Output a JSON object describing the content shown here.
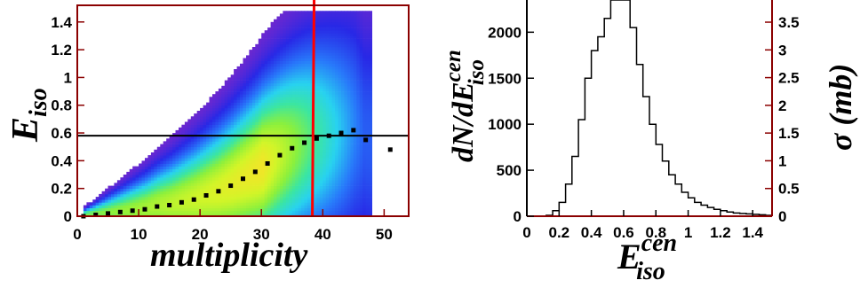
{
  "chart_data": [
    {
      "type": "heatmap",
      "xlabel": "multiplicity",
      "ylabel_main": "E",
      "ylabel_sub": "iso",
      "xlim": [
        0,
        54
      ],
      "ylim": [
        0,
        1.52
      ],
      "xticks": [
        0,
        10,
        20,
        30,
        40,
        50
      ],
      "xtick_labels": [
        "0",
        "10",
        "20",
        "30",
        "40",
        "50"
      ],
      "yticks": [
        0,
        0.2,
        0.4,
        0.6,
        0.8,
        1,
        1.2,
        1.4
      ],
      "ytick_labels": [
        "0",
        "0.2",
        "0.4",
        "0.6",
        "0.8",
        "1",
        "1.2",
        "1.4"
      ],
      "horizontal_line_y": 0.58,
      "vertical_line_x": 38.3,
      "colors": {
        "frame": "#8b0000",
        "cut_line": "#ff0000",
        "ref_line": "#000000"
      },
      "profile_points": [
        {
          "x": 1,
          "y": 0.0
        },
        {
          "x": 3,
          "y": 0.01
        },
        {
          "x": 5,
          "y": 0.02
        },
        {
          "x": 7,
          "y": 0.03
        },
        {
          "x": 9,
          "y": 0.04
        },
        {
          "x": 11,
          "y": 0.05
        },
        {
          "x": 13,
          "y": 0.07
        },
        {
          "x": 15,
          "y": 0.08
        },
        {
          "x": 17,
          "y": 0.1
        },
        {
          "x": 19,
          "y": 0.12
        },
        {
          "x": 21,
          "y": 0.15
        },
        {
          "x": 23,
          "y": 0.18
        },
        {
          "x": 25,
          "y": 0.22
        },
        {
          "x": 27,
          "y": 0.27
        },
        {
          "x": 29,
          "y": 0.32
        },
        {
          "x": 31,
          "y": 0.38
        },
        {
          "x": 33,
          "y": 0.44
        },
        {
          "x": 35,
          "y": 0.49
        },
        {
          "x": 37,
          "y": 0.53
        },
        {
          "x": 39,
          "y": 0.56
        },
        {
          "x": 41,
          "y": 0.58
        },
        {
          "x": 43,
          "y": 0.6
        },
        {
          "x": 45,
          "y": 0.62
        },
        {
          "x": 47,
          "y": 0.55
        },
        {
          "x": 51,
          "y": 0.48
        }
      ]
    },
    {
      "type": "bar",
      "style": "step-histogram",
      "xlabel_main": "E",
      "xlabel_sup": "cen",
      "xlabel_sub": "iso",
      "ylabel_main": "dN/dE",
      "ylabel_sup": "cen",
      "ylabel_sub": "iso",
      "right_axis_label": "σ (mb)",
      "xlim": [
        0,
        1.52
      ],
      "ylim": [
        0,
        2350
      ],
      "right_ylim": [
        0,
        3.9
      ],
      "xticks": [
        0,
        0.2,
        0.4,
        0.6,
        0.8,
        1,
        1.2,
        1.4
      ],
      "xtick_labels": [
        "0",
        "0.2",
        "0.4",
        "0.6",
        "0.8",
        "1",
        "1.2",
        "1.4"
      ],
      "yticks": [
        0,
        500,
        1000,
        1500,
        2000
      ],
      "ytick_labels": [
        "0",
        "500",
        "1000",
        "1500",
        "2000"
      ],
      "right_yticks": [
        0,
        0.5,
        1,
        1.5,
        2,
        2.5,
        3,
        3.5
      ],
      "right_ytick_labels": [
        "0",
        "0.5",
        "1",
        "1.5",
        "2",
        "2.5",
        "3",
        "3.5"
      ],
      "bin_width": 0.04,
      "x_start": 0.12,
      "values": [
        10,
        60,
        150,
        350,
        650,
        1050,
        1500,
        1800,
        1950,
        2150,
        2350,
        2350,
        2350,
        2050,
        1650,
        1300,
        1000,
        780,
        600,
        450,
        350,
        260,
        200,
        150,
        120,
        95,
        75,
        60,
        45,
        35,
        30,
        25,
        20,
        15,
        10
      ]
    }
  ]
}
